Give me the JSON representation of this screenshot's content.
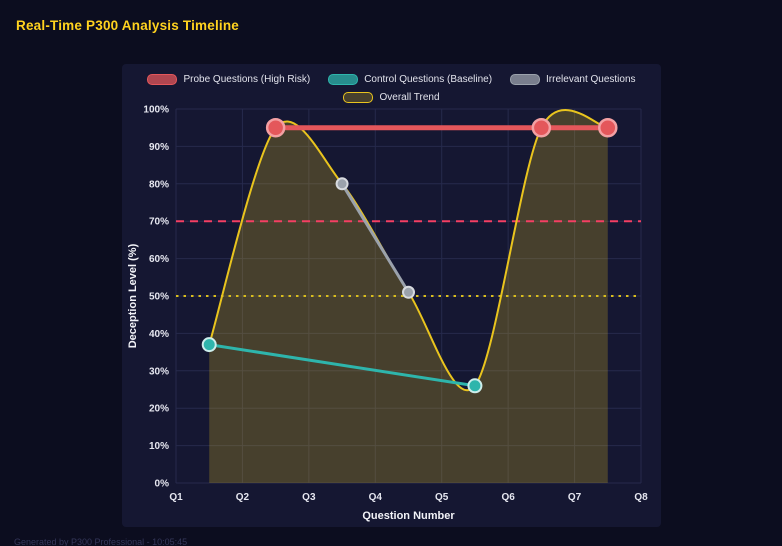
{
  "page": {
    "title": "Real-Time P300 Analysis Timeline",
    "footer": "Generated by P300 Professional - 10:05:45"
  },
  "colors": {
    "background": "#0c0d1f",
    "panel": "#151732",
    "grid": "#262a4c",
    "title": "#ffd21f",
    "tick_text": "#e6e7f0",
    "axis_title_text": "#f2f3f8"
  },
  "chart_data": {
    "type": "line",
    "title": "Real-Time P300 Analysis Timeline",
    "xlabel": "Question Number",
    "ylabel": "Deception Level (%)",
    "x_tick_labels": [
      "Q1",
      "Q2",
      "Q3",
      "Q4",
      "Q5",
      "Q6",
      "Q7",
      "Q8"
    ],
    "x_tick_values": [
      1,
      2,
      3,
      4,
      5,
      6,
      7,
      8
    ],
    "xlim": [
      1,
      8
    ],
    "ylim": [
      0,
      100
    ],
    "y_tick_step": 10,
    "y_tick_suffix": "%",
    "grid": true,
    "legend_position": "top",
    "series": [
      {
        "name": "Probe Questions (High Risk)",
        "role": "probe",
        "color": "#e4575b",
        "marker_border": "#f3a0a3",
        "x": [
          2.5,
          6.5,
          7.5
        ],
        "values": [
          95,
          95,
          95
        ]
      },
      {
        "name": "Control Questions (Baseline)",
        "role": "control",
        "color": "#2eb5ac",
        "marker_border": "#cdeeec",
        "x": [
          1.5,
          5.5
        ],
        "values": [
          37,
          26
        ]
      },
      {
        "name": "Irrelevant Questions",
        "role": "irrelevant",
        "color": "#9ba2ac",
        "marker_border": "#d7dadf",
        "x": [
          3.5,
          4.5
        ],
        "values": [
          80,
          51
        ]
      },
      {
        "name": "Overall Trend",
        "role": "trend",
        "color": "#e9c41e",
        "fill_color": "rgba(233,196,30,0.24)",
        "smooth": true,
        "fill_to_zero": true,
        "x": [
          1.5,
          2.5,
          3.5,
          4.5,
          5.5,
          6.5,
          7.5
        ],
        "values": [
          37,
          95,
          80,
          51,
          26,
          95,
          95
        ]
      }
    ],
    "reference_lines": [
      {
        "value": 70,
        "color": "#f43f63",
        "style": "dashed"
      },
      {
        "value": 50,
        "color": "#d9be1d",
        "style": "dotted"
      }
    ]
  }
}
